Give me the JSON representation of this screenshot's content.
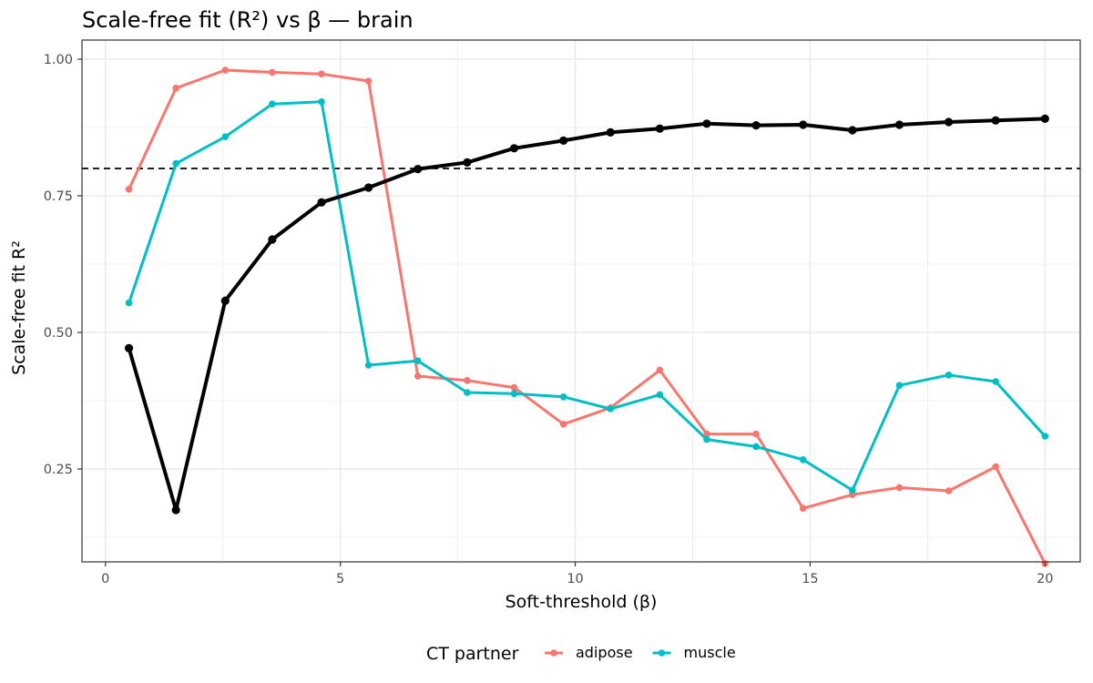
{
  "chart_data": {
    "type": "line",
    "title": "Scale-free fit (R²) vs β — brain",
    "xlabel": "Soft-threshold (β)",
    "ylabel": "Scale-free fit R²",
    "xlim": [
      -0.5,
      20.75
    ],
    "ylim": [
      0.08,
      1.035
    ],
    "xticks": [
      0,
      5,
      10,
      15,
      20
    ],
    "xtick_labels": [
      "0",
      "5",
      "10",
      "15",
      "20"
    ],
    "yticks": [
      0.25,
      0.5,
      0.75,
      1.0
    ],
    "ytick_labels": [
      "0.25",
      "0.50",
      "0.75",
      "1.00"
    ],
    "x": [
      0.5,
      1.5,
      2.55,
      3.55,
      4.6,
      5.6,
      6.65,
      7.7,
      8.7,
      9.75,
      10.75,
      11.8,
      12.8,
      13.85,
      14.85,
      15.9,
      16.9,
      17.95,
      18.95,
      20.0
    ],
    "threshold_line": 0.8,
    "series": [
      {
        "name": "brain",
        "color": "#000000",
        "values": [
          0.471,
          0.175,
          0.558,
          0.67,
          0.738,
          0.765,
          0.799,
          0.811,
          0.837,
          0.851,
          0.866,
          0.873,
          0.882,
          0.879,
          0.88,
          0.87,
          0.88,
          0.885,
          0.888,
          0.891
        ]
      },
      {
        "name": "adipose",
        "color": "#F8766D",
        "values": [
          0.762,
          0.947,
          0.98,
          0.976,
          0.973,
          0.96,
          0.42,
          0.412,
          0.399,
          0.332,
          0.362,
          0.431,
          0.314,
          0.314,
          0.178,
          0.203,
          0.216,
          0.21,
          0.254,
          0.077
        ]
      },
      {
        "name": "muscle",
        "color": "#00BFC4",
        "values": [
          0.554,
          0.809,
          0.858,
          0.918,
          0.922,
          0.44,
          0.448,
          0.39,
          0.388,
          0.382,
          0.36,
          0.386,
          0.304,
          0.291,
          0.267,
          0.211,
          0.403,
          0.422,
          0.41,
          0.31
        ]
      }
    ],
    "legend": {
      "title": "CT partner",
      "position": "bottom",
      "entries": [
        {
          "label": "adipose",
          "color": "#F8766D"
        },
        {
          "label": "muscle",
          "color": "#00BFC4"
        }
      ]
    }
  }
}
